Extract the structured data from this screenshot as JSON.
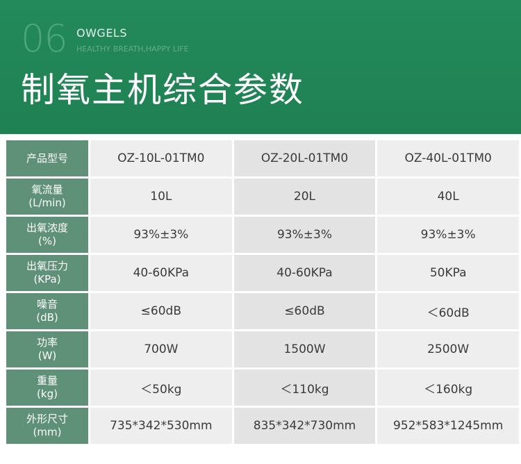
{
  "header": {
    "number": "06",
    "brand": "OWGELS",
    "slogan": "HEALTHY BREATH,HAPPY LIFE",
    "title": "制氧主机综合参数"
  },
  "table": {
    "rows": [
      {
        "label": [
          "产品型号"
        ],
        "values": [
          "OZ-10L-01TM0",
          "OZ-20L-01TM0",
          "OZ-40L-01TM0"
        ]
      },
      {
        "label": [
          "氧流量",
          "(L/min)"
        ],
        "values": [
          "10L",
          "20L",
          "40L"
        ]
      },
      {
        "label": [
          "出氧浓度",
          "(%)"
        ],
        "values": [
          "93%±3%",
          "93%±3%",
          "93%±3%"
        ]
      },
      {
        "label": [
          "出氧压力",
          "(KPa)"
        ],
        "values": [
          "40-60KPa",
          "40-60KPa",
          "50KPa"
        ]
      },
      {
        "label": [
          "噪音",
          "(dB)"
        ],
        "values": [
          "≤60dB",
          "≤60dB",
          "＜60dB"
        ]
      },
      {
        "label": [
          "功率",
          "(W)"
        ],
        "values": [
          "700W",
          "1500W",
          "2500W"
        ]
      },
      {
        "label": [
          "重量",
          "(kg)"
        ],
        "values": [
          "＜50kg",
          "＜110kg",
          "＜160kg"
        ]
      },
      {
        "label": [
          "外形尺寸",
          "(mm)"
        ],
        "values": [
          "735*342*530mm",
          "835*342*730mm",
          "952*583*1245mm"
        ]
      }
    ]
  }
}
